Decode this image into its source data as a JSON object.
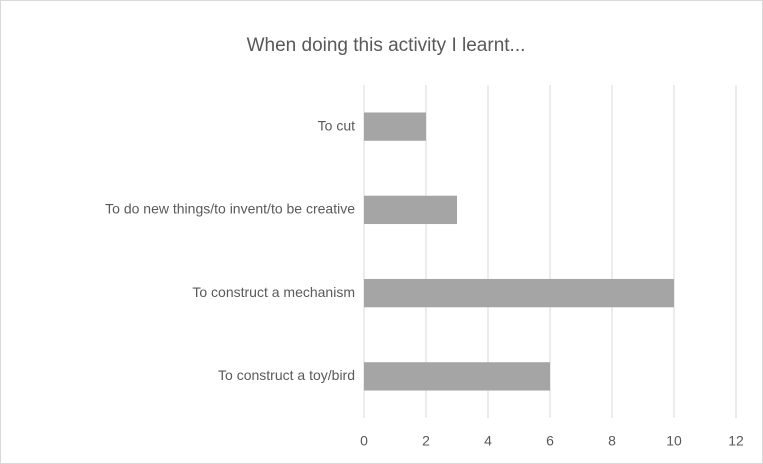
{
  "chart_data": {
    "type": "bar",
    "orientation": "horizontal",
    "title": "When doing this activity I learnt...",
    "categories": [
      "To cut",
      "To do new things/to invent/to be creative",
      "To construct a mechanism",
      "To construct a toy/bird"
    ],
    "values": [
      2,
      3,
      10,
      6
    ],
    "color": "#a5a5a5",
    "xlim": [
      0,
      12
    ],
    "xticks": [
      0,
      2,
      4,
      6,
      8,
      10,
      12
    ],
    "grid": true
  }
}
